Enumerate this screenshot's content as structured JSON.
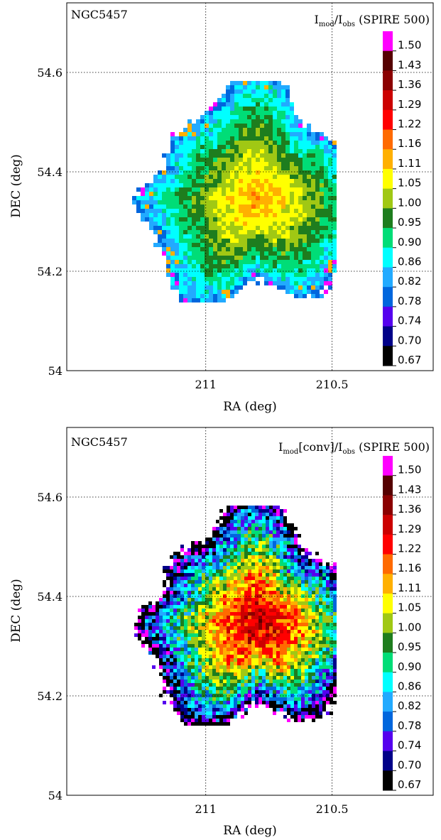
{
  "colors": {
    "frame": "#000000",
    "grid": "#000000"
  },
  "colorbar_label_values": [
    "1.50",
    "1.43",
    "1.36",
    "1.29",
    "1.22",
    "1.16",
    "1.11",
    "1.05",
    "1.00",
    "0.95",
    "0.90",
    "0.86",
    "0.82",
    "0.78",
    "0.74",
    "0.70",
    "0.67"
  ],
  "colorbar_colors": [
    "#ff00ff",
    "#550000",
    "#8b0000",
    "#cc0000",
    "#ff0000",
    "#ff6a00",
    "#ffb000",
    "#ffff00",
    "#a0c814",
    "#1e7d1e",
    "#00dd77",
    "#00ffff",
    "#22aaff",
    "#0066dd",
    "#5500ee",
    "#000088",
    "#000000"
  ],
  "chart_data": [
    {
      "type": "heatmap",
      "title": "NGC5457",
      "map_label": {
        "main": "I",
        "sub1": "mod",
        "mid": "/I",
        "sub2": "obs",
        "suffix": " (SPIRE 500)"
      },
      "xlabel": "RA (deg)",
      "ylabel": "DEC (deg)",
      "x_ticks": [
        "211",
        "210.5"
      ],
      "y_ticks": [
        "54.6",
        "54.4",
        "54.2",
        "54"
      ],
      "xlim": [
        211.55,
        210.1
      ],
      "ylim": [
        54.0,
        54.74
      ],
      "grid": true,
      "colorbar_position": "right",
      "style": "smooth",
      "description_values": {
        "center": [
          210.8,
          54.35
        ],
        "center_value_range": [
          1.05,
          1.16
        ],
        "outer_value_range": [
          0.82,
          0.95
        ]
      }
    },
    {
      "type": "heatmap",
      "title": "NGC5457",
      "map_label": {
        "main": "I",
        "sub1": "mod",
        "mid": "[conv]/I",
        "sub2": "obs",
        "suffix": " (SPIRE 500)"
      },
      "xlabel": "RA (deg)",
      "ylabel": "DEC (deg)",
      "x_ticks": [
        "211",
        "210.5"
      ],
      "y_ticks": [
        "54.6",
        "54.4",
        "54.2",
        "54"
      ],
      "xlim": [
        211.55,
        210.1
      ],
      "ylim": [
        54.0,
        54.74
      ],
      "grid": true,
      "colorbar_position": "right",
      "style": "noisy",
      "description_values": {
        "center": [
          210.8,
          54.35
        ],
        "center_value_range": [
          1.16,
          1.36
        ],
        "outer_value_range": [
          0.67,
          0.78
        ]
      }
    }
  ]
}
